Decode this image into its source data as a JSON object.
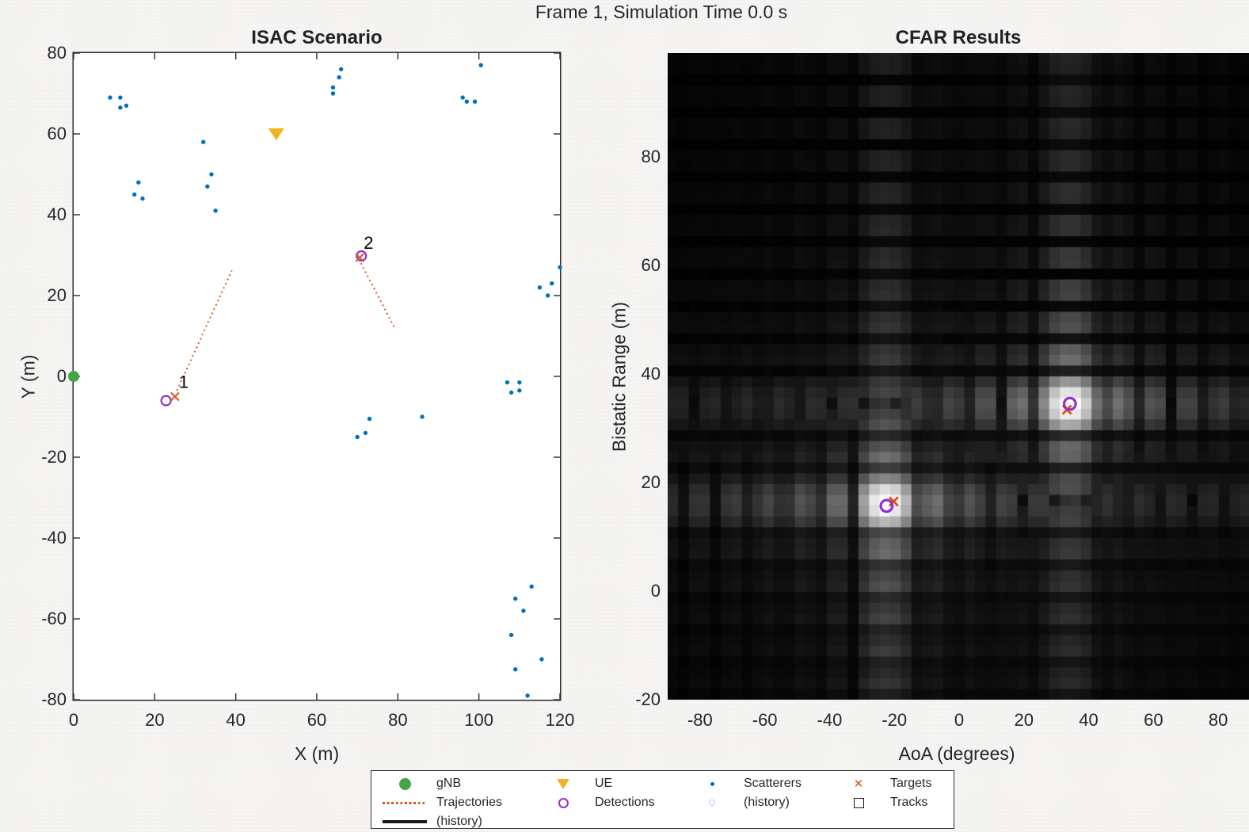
{
  "figure": {
    "title": "Frame 1, Simulation Time 0.0 s"
  },
  "colors": {
    "green": "#42A546",
    "amber": "#EFB324",
    "blue": "#0072BD",
    "orange": "#D95319",
    "purple": "#9330CE",
    "lavender": "#D9B8F0",
    "axis": "#2B2B2B",
    "text": "#262626"
  },
  "chart_data": [
    {
      "type": "scatter",
      "title": "ISAC Scenario",
      "xlabel": "X (m)",
      "ylabel": "Y (m)",
      "xlim": [
        0,
        120
      ],
      "ylim": [
        -80,
        80
      ],
      "xticks": [
        0,
        20,
        40,
        60,
        80,
        100,
        120
      ],
      "yticks": [
        80,
        60,
        40,
        20,
        0,
        -20,
        -40,
        -60,
        -80
      ],
      "gnb": {
        "x": 0,
        "y": 0
      },
      "ue": {
        "x": 50,
        "y": 60
      },
      "scatterers": [
        [
          9,
          69
        ],
        [
          11.5,
          69
        ],
        [
          11.5,
          66.5
        ],
        [
          13,
          67
        ],
        [
          66,
          76
        ],
        [
          65.5,
          74
        ],
        [
          64,
          71.5
        ],
        [
          64,
          70
        ],
        [
          100.5,
          77
        ],
        [
          96,
          69
        ],
        [
          97,
          68
        ],
        [
          99,
          68
        ],
        [
          32,
          58
        ],
        [
          34,
          50
        ],
        [
          33,
          47
        ],
        [
          35,
          41
        ],
        [
          16,
          48
        ],
        [
          15,
          45
        ],
        [
          17,
          44
        ],
        [
          120,
          27
        ],
        [
          118,
          23
        ],
        [
          115,
          22
        ],
        [
          117,
          20
        ],
        [
          107,
          -1.5
        ],
        [
          110,
          -1.5
        ],
        [
          108,
          -4
        ],
        [
          110,
          -3.5
        ],
        [
          86,
          -10
        ],
        [
          73,
          -10.5
        ],
        [
          72,
          -14
        ],
        [
          70,
          -15
        ],
        [
          113,
          -52
        ],
        [
          109,
          -55
        ],
        [
          111,
          -58
        ],
        [
          108,
          -64
        ],
        [
          115.5,
          -70
        ],
        [
          109,
          -72.5
        ],
        [
          112,
          -79
        ]
      ],
      "targets": [
        {
          "label": "1",
          "x": 25,
          "y": -5
        },
        {
          "label": "2",
          "x": 70.6,
          "y": 29.4
        }
      ],
      "detections": [
        {
          "x": 22.8,
          "y": -6
        },
        {
          "x": 71,
          "y": 29.8
        }
      ],
      "trajectories": [
        {
          "from": [
            25.5,
            -3.5
          ],
          "to": [
            39,
            26.2
          ]
        },
        {
          "from": [
            70.9,
            28
          ],
          "to": [
            79.2,
            12
          ]
        }
      ]
    },
    {
      "type": "heatmap",
      "title": "CFAR Results",
      "xlabel": "AoA (degrees)",
      "ylabel": "Bistatic Range (m)",
      "xlim": [
        -90,
        90
      ],
      "ylim": [
        -20,
        99.1
      ],
      "xticks": [
        -80,
        -60,
        -40,
        -20,
        0,
        20,
        40,
        60,
        80
      ],
      "yticks": [
        80,
        60,
        40,
        20,
        0,
        -20
      ],
      "grid_cells": {
        "aoa": 55,
        "range": 60
      },
      "response_model": {
        "beam_width_deg": 10.5,
        "range_width_m": 6,
        "sidelobe_gamma": 0.55
      },
      "peaks": [
        {
          "aoa": -22.5,
          "range": 16.2,
          "amp": 1
        },
        {
          "aoa": 34,
          "range": 34.4,
          "amp": 1
        }
      ],
      "detections": [
        {
          "aoa": -22.4,
          "range": 15.7
        },
        {
          "aoa": 34.2,
          "range": 34.5
        }
      ],
      "targets": [
        {
          "aoa": -20.2,
          "range": 16.5
        },
        {
          "aoa": 33.3,
          "range": 33.4
        }
      ]
    }
  ],
  "legend": {
    "items": [
      {
        "marker": "gnb",
        "label": "gNB"
      },
      {
        "marker": "trajectory",
        "label": "Trajectories"
      },
      {
        "marker": "history-line",
        "label": "(history)"
      },
      {
        "marker": "ue",
        "label": "UE"
      },
      {
        "marker": "detection",
        "label": "Detections"
      },
      {
        "marker": "scatterer",
        "label": "Scatterers"
      },
      {
        "marker": "detection-history",
        "label": "(history)"
      },
      {
        "marker": "target",
        "label": "Targets"
      },
      {
        "marker": "track",
        "label": "Tracks"
      }
    ]
  }
}
